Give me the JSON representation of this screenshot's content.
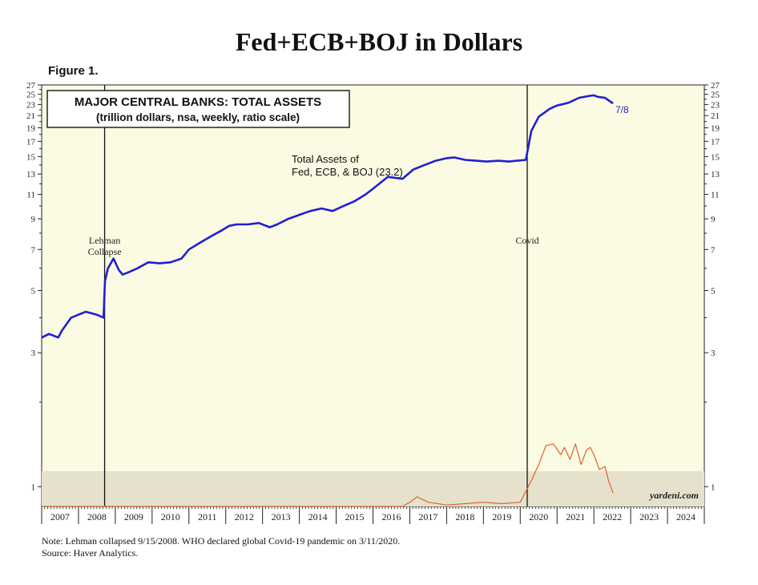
{
  "title": "Fed+ECB+BOJ in Dollars",
  "figure_label": "Figure 1.",
  "notes": {
    "line1": "Note: Lehman collapsed 9/15/2008. WHO declared global Covid-19 pandemic on 3/11/2020.",
    "line2": "Source: Haver Analytics."
  },
  "colors": {
    "plot_bg": "#fbfbe3",
    "bottom_band": "#e5e1cd",
    "main_line": "#1f1fd6",
    "sub_line": "#e0622a",
    "event_line": "#111111"
  },
  "chart_data": {
    "type": "line",
    "legend_box": {
      "line1": "MAJOR CENTRAL BANKS: TOTAL ASSETS",
      "line2": "(trillion dollars, nsa, weekly, ratio scale)"
    },
    "series_label": {
      "line1": "Total Assets of",
      "line2": "Fed, ECB, & BOJ (23.2)"
    },
    "end_label": "7/8",
    "watermark": "yardeni.com",
    "y_scale": "log",
    "ylim": [
      0.85,
      27
    ],
    "y_ticks": [
      1,
      3,
      5,
      7,
      9,
      11,
      13,
      15,
      17,
      19,
      21,
      23,
      25,
      27
    ],
    "x_labels": [
      "2007",
      "2008",
      "2009",
      "2010",
      "2011",
      "2012",
      "2013",
      "2014",
      "2015",
      "2016",
      "2017",
      "2018",
      "2019",
      "2020",
      "2021",
      "2022",
      "2023",
      "2024"
    ],
    "xlim": [
      2007.0,
      2025.0
    ],
    "events": [
      {
        "x": 2008.71,
        "label_line1": "Lehman",
        "label_line2": "Collapse"
      },
      {
        "x": 2020.19,
        "label_line1": "Covid",
        "label_line2": ""
      }
    ],
    "series": [
      {
        "x": [
          2007.0,
          2007.2,
          2007.45,
          2007.55,
          2007.8,
          2008.0,
          2008.2,
          2008.5,
          2008.68,
          2008.72,
          2008.8,
          2008.95,
          2009.1,
          2009.2,
          2009.35,
          2009.6,
          2009.9,
          2010.2,
          2010.5,
          2010.8,
          2011.0,
          2011.3,
          2011.6,
          2011.9,
          2012.1,
          2012.3,
          2012.6,
          2012.9,
          2013.2,
          2013.4,
          2013.7,
          2014.0,
          2014.3,
          2014.6,
          2014.9,
          2015.2,
          2015.5,
          2015.8,
          2016.1,
          2016.4,
          2016.6,
          2016.8,
          2017.1,
          2017.4,
          2017.7,
          2018.0,
          2018.2,
          2018.5,
          2018.8,
          2019.1,
          2019.4,
          2019.7,
          2019.9,
          2020.15,
          2020.19,
          2020.3,
          2020.5,
          2020.8,
          2021.0,
          2021.3,
          2021.6,
          2021.9,
          2022.0,
          2022.1,
          2022.3,
          2022.52
        ],
        "y": [
          3.4,
          3.5,
          3.4,
          3.6,
          4.0,
          4.1,
          4.2,
          4.1,
          4.0,
          5.4,
          6.0,
          6.5,
          5.9,
          5.7,
          5.8,
          6.0,
          6.3,
          6.25,
          6.3,
          6.5,
          7.0,
          7.4,
          7.8,
          8.2,
          8.5,
          8.6,
          8.6,
          8.7,
          8.4,
          8.6,
          9.0,
          9.3,
          9.6,
          9.8,
          9.6,
          10.0,
          10.4,
          11.0,
          11.8,
          12.7,
          12.6,
          12.5,
          13.5,
          14.0,
          14.5,
          14.8,
          14.9,
          14.6,
          14.5,
          14.4,
          14.5,
          14.4,
          14.5,
          14.6,
          15.5,
          18.5,
          20.8,
          22.2,
          22.8,
          23.3,
          24.3,
          24.7,
          24.8,
          24.5,
          24.3,
          23.2
        ]
      },
      {
        "x": [
          2007.0,
          2016.8,
          2017.0,
          2017.2,
          2017.5,
          2018.0,
          2018.5,
          2019.0,
          2019.5,
          2020.0,
          2020.3,
          2020.5,
          2020.7,
          2020.9,
          2021.1,
          2021.2,
          2021.35,
          2021.5,
          2021.65,
          2021.8,
          2021.9,
          2022.0,
          2022.15,
          2022.3,
          2022.4,
          2022.52
        ],
        "y": [
          0.85,
          0.85,
          0.88,
          0.92,
          0.88,
          0.86,
          0.87,
          0.88,
          0.87,
          0.88,
          1.05,
          1.2,
          1.4,
          1.42,
          1.3,
          1.38,
          1.25,
          1.42,
          1.2,
          1.35,
          1.38,
          1.3,
          1.15,
          1.18,
          1.05,
          0.95
        ]
      }
    ]
  }
}
